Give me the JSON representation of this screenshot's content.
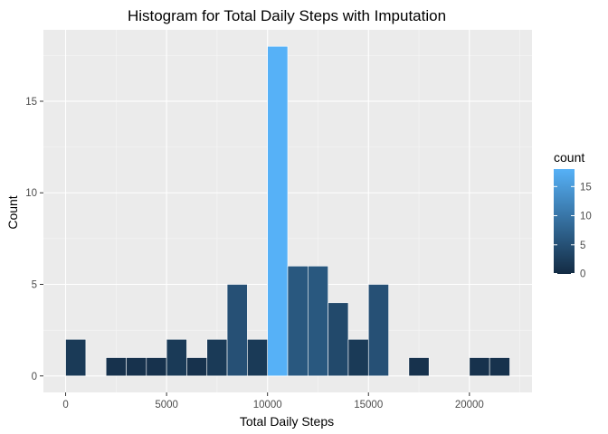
{
  "chart_data": {
    "type": "bar",
    "title": "Histogram for Total Daily Steps with Imputation",
    "xlabel": "Total Daily Steps",
    "ylabel": "Count",
    "bins": [
      {
        "from": 0,
        "to": 1000,
        "count": 2
      },
      {
        "from": 1000,
        "to": 2000,
        "count": 0
      },
      {
        "from": 2000,
        "to": 3000,
        "count": 1
      },
      {
        "from": 3000,
        "to": 4000,
        "count": 1
      },
      {
        "from": 4000,
        "to": 5000,
        "count": 1
      },
      {
        "from": 5000,
        "to": 6000,
        "count": 2
      },
      {
        "from": 6000,
        "to": 7000,
        "count": 1
      },
      {
        "from": 7000,
        "to": 8000,
        "count": 2
      },
      {
        "from": 8000,
        "to": 9000,
        "count": 5
      },
      {
        "from": 9000,
        "to": 10000,
        "count": 2
      },
      {
        "from": 10000,
        "to": 11000,
        "count": 18
      },
      {
        "from": 11000,
        "to": 12000,
        "count": 6
      },
      {
        "from": 12000,
        "to": 13000,
        "count": 6
      },
      {
        "from": 13000,
        "to": 14000,
        "count": 4
      },
      {
        "from": 14000,
        "to": 15000,
        "count": 2
      },
      {
        "from": 15000,
        "to": 16000,
        "count": 5
      },
      {
        "from": 16000,
        "to": 17000,
        "count": 0
      },
      {
        "from": 17000,
        "to": 18000,
        "count": 1
      },
      {
        "from": 18000,
        "to": 19000,
        "count": 0
      },
      {
        "from": 19000,
        "to": 20000,
        "count": 0
      },
      {
        "from": 20000,
        "to": 21000,
        "count": 1
      },
      {
        "from": 21000,
        "to": 22000,
        "count": 1
      }
    ],
    "xlim": [
      -1100,
      23100
    ],
    "ylim": [
      -0.9,
      18.9
    ],
    "xticks": [
      0,
      5000,
      10000,
      15000,
      20000
    ],
    "yticks": [
      0,
      5,
      10,
      15
    ],
    "grid": true,
    "panel_background": "#ebebeb",
    "bar_outline": "#ffffff",
    "color_scale": {
      "low": "#132b43",
      "high": "#56b1f7",
      "domain": [
        0,
        18
      ]
    },
    "legend": {
      "title": "count",
      "placement": "right",
      "ticks": [
        0,
        5,
        10,
        15
      ]
    }
  }
}
